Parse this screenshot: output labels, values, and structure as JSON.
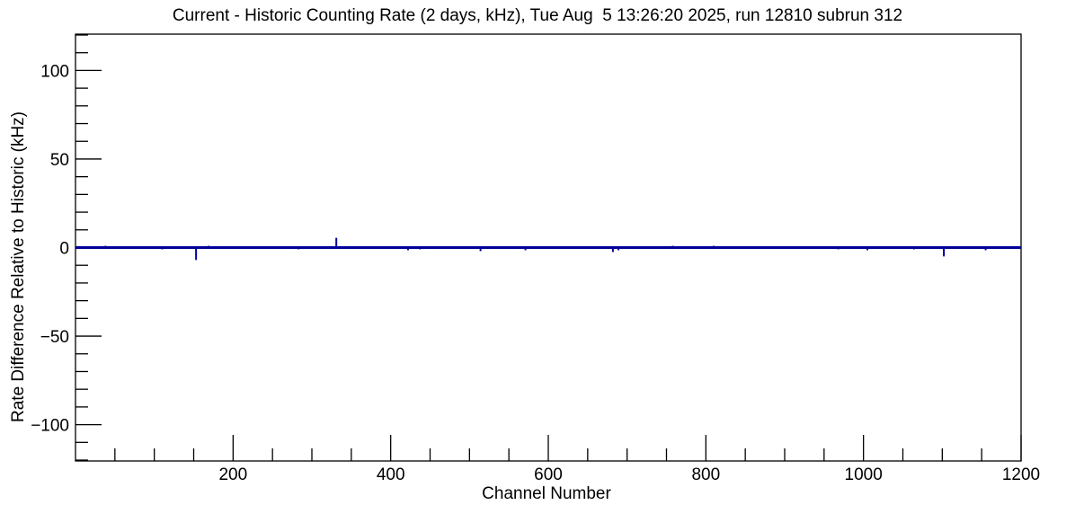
{
  "chart_data": {
    "type": "line",
    "title": "Current - Historic Counting Rate (2 days, kHz), Tue Aug  5 13:26:20 2025, run 12810 subrun 312",
    "xlabel": "Channel Number",
    "ylabel": "Rate Difference Relative to Historic (kHz)",
    "xlim": [
      0,
      1200
    ],
    "ylim": [
      -120.5,
      120.5
    ],
    "x_major_ticks": [
      200,
      400,
      600,
      800,
      1000,
      1200
    ],
    "x_tick_labels": [
      "200",
      "400",
      "600",
      "800",
      "1000",
      "1200"
    ],
    "x_minor_step": 50,
    "y_major_ticks": [
      -100,
      -50,
      0,
      50,
      100
    ],
    "y_tick_labels": [
      "−100",
      "−50",
      "0",
      "50",
      "100"
    ],
    "y_minor_step": 10,
    "grid": false,
    "legend": "none",
    "baseline_value": 0,
    "line_color": "#000099",
    "frame_color": "#000000",
    "background_color": "#ffffff",
    "series_description": "Rate difference vs channel number: flat at 0 kHz for all 1200 channels except narrow spikes listed below",
    "spikes": [
      {
        "channel": 38,
        "value": 1.0
      },
      {
        "channel": 110,
        "value": -1.0
      },
      {
        "channel": 153,
        "value": -7.0
      },
      {
        "channel": 169,
        "value": 1.0
      },
      {
        "channel": 283,
        "value": -1.0
      },
      {
        "channel": 331,
        "value": 5.5
      },
      {
        "channel": 422,
        "value": -1.5
      },
      {
        "channel": 437,
        "value": -1.0
      },
      {
        "channel": 514,
        "value": -2.0
      },
      {
        "channel": 571,
        "value": -1.5
      },
      {
        "channel": 682,
        "value": -2.5
      },
      {
        "channel": 689,
        "value": -1.5
      },
      {
        "channel": 758,
        "value": 1.0
      },
      {
        "channel": 810,
        "value": 1.0
      },
      {
        "channel": 968,
        "value": -1.0
      },
      {
        "channel": 1005,
        "value": -1.5
      },
      {
        "channel": 1064,
        "value": -1.0
      },
      {
        "channel": 1102,
        "value": -5.0
      },
      {
        "channel": 1155,
        "value": -1.5
      }
    ]
  }
}
